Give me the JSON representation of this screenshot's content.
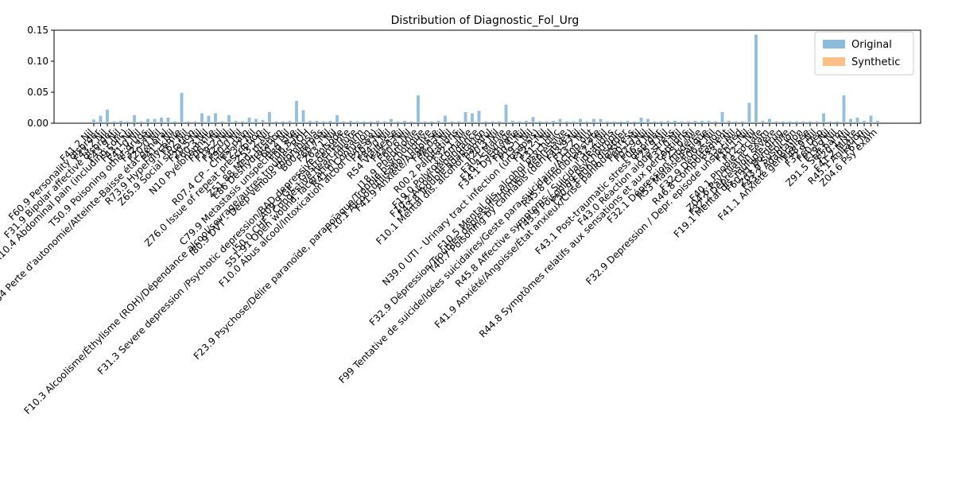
{
  "chart_data": {
    "type": "bar",
    "title": "Distribution of Diagnostic_Fol_Urg",
    "xlabel": "",
    "ylabel": "",
    "ylim": [
      0,
      0.15
    ],
    "yticks": [
      "0.00",
      "0.05",
      "0.10",
      "0.15"
    ],
    "grid": false,
    "legend_position": "top-right",
    "colors": {
      "original": "#8DBCDB",
      "synthetic": "#FFBF86"
    },
    "categories": [
      "F41.2 Nil",
      "F60.9 Personality disorder",
      "F43.2 Nil",
      "F31.9 Bipolar affective disorder",
      "F43.9 Nil",
      "R10.4 Abdominal pain (including colic)",
      "F43.1 Nil",
      "F41.0 Nil",
      "T50.9 Poisoning other drugs",
      "F32.3 Nil",
      "F20.0 Nil",
      "R54 Perte d'autonomie/Atteinte-Baisse état général",
      "F41.1 Nil",
      "R73.9 Hyperglycémie",
      "F62 Nil",
      "Z65.9 Social situation",
      "F20.5 Nil",
      "F60.3 Nil",
      "N10 Pyélonéphrite",
      "F06.1 Nil",
      "F19.2 Nil",
      "F32.0 Nil",
      "F90.0 Nil",
      "R07.4 CP - Chest pain",
      "F23.2 Nil",
      "Z76.0 Issue of repeat prescription",
      "Z53.2 Nil",
      "Z51.88 Med. presc.",
      "E86 Déshydratation",
      "F60.2 Nil",
      "C79.9 Metastasis unspecified site",
      "F06.8 Nil",
      "F10.3 Alcoolisme/Éthylisme (ROH)/Dépendance alcool/sevrage/autres troubles ROH",
      "I80.9 DVT - Deep venous thrombosis",
      "B00 Herpes",
      "F60.7 Nil",
      "Z63.1 Nil",
      "F31.3 Severe depression /Psychotic depression/BAD depressive episode",
      "A09.9 GE - Gastroentérite",
      "I50.0 CHF - Congestive heart failure",
      "S51.91 Open wound, laceration forearm",
      "R41.0 Confusion",
      "F10.0 Abus alcool/Intoxication alcool (Ivresse)",
      "F20.9 Nil",
      "F84.0 Nil",
      "R54 Vieillesse",
      "F43.0 Nil",
      "F60.6 Nil",
      "J18.9 Pneumonie",
      "F23.9 Psychose/Délire paranoïde, paranoïaque/Trouble psychotique",
      "F10.1 Alcool utilisation nocive",
      "F41.9 Anxiété/Angoisse",
      "F48.0 Nil",
      "F60.8 Nil",
      "R00.2 Palpitations",
      "F32.1 Nil",
      "F19.0 Polytoxicomanie",
      "F10.2 Alcool dépendance",
      "F43.8 Trouble adaptation",
      "F10.1 Mental dis. alcohol harmful",
      "F20.3 Nil",
      "F30.1 Manie",
      "F10.4 Sevrage",
      "F34.1 Dysthymie",
      "F60.5 Nil",
      "F19.1 Nil",
      "N39.0 UTI - Urinary tract infection (urosepsis)",
      "F12.2 Nil",
      "F31.1 Nil",
      "F10.5 Mental dis. alcohol psychotic",
      "F32.9 Dépression/Troubles dépressifs/Humeur dépressive",
      "T40.7 Poisoning by cannabis (derivatives)",
      "F43.9 Nil",
      "F13.2 Nil",
      "F99 Tentative de suicide/Idées suicidaires/Geste para-suicidaire/Acting out",
      "R45.8 Emotional state",
      "F32.2 Nil",
      "R45.8 Affective symptoms / Suicidal ideations",
      "T43.9 Poisoning psychotropic",
      "F50.9 Eating disorder",
      "F41.9 Anxiété/Angoisse/État anxieux/Crise panique/Stress",
      "F60.1 Nil",
      "F07.9 Nil",
      "F06.9 Nil",
      "F43.1 Post-traumatic stress disorder",
      "F25.9 Nil",
      "F43.0 Réaction aiguë stress",
      "F31.0 Nil",
      "R44.8 Symptômes relatifs aux sensations et aux perceptions",
      "F25.0 Nil",
      "F32.1 Dépression modérée",
      "R53 Malaise/Fatigue",
      "F06.2 Nil",
      "F32.9 Dépression",
      "R46.8 Comportement",
      "F33.1 Nil",
      "F32.9 Depression / Depr. episode unspecified",
      "F10.1 Nil",
      "F12.1 Nil",
      "F40.1 Phobie sociale",
      "Z04.6 Psychiatric exam",
      "F32.2 Dépression sévère",
      "F19.1 Mental dis. multiple drug",
      "F60.31 Borderline",
      "Z03.9 Suspicion",
      "F43.2 Adaptation",
      "F41.1 Anxiété généralisée",
      "F48.9 Nil",
      "F32.9 Dep",
      "F60.0 Nil",
      "F19.9 Nil",
      "Z91.5 Self-harm",
      "F20.1 Nil",
      "F41.2 Mixte",
      "R45.1 Agitation",
      "F61 Nil",
      "Z04.6 Psy exam"
    ],
    "series": [
      {
        "name": "Original",
        "values": [
          0.006,
          0.012,
          0.022,
          0.003,
          0.004,
          0.003,
          0.013,
          0.003,
          0.007,
          0.007,
          0.009,
          0.009,
          0.003,
          0.049,
          0.003,
          0.003,
          0.016,
          0.012,
          0.016,
          0.003,
          0.013,
          0.004,
          0.003,
          0.009,
          0.007,
          0.005,
          0.018,
          0.003,
          0.003,
          0.004,
          0.036,
          0.021,
          0.004,
          0.004,
          0.003,
          0.004,
          0.013,
          0.003,
          0.004,
          0.003,
          0.003,
          0.003,
          0.004,
          0.003,
          0.007,
          0.003,
          0.004,
          0.003,
          0.045,
          0.003,
          0.003,
          0.004,
          0.012,
          0.003,
          0.003,
          0.018,
          0.016,
          0.02,
          0.003,
          0.003,
          0.003,
          0.03,
          0.004,
          0.003,
          0.004,
          0.01,
          0.003,
          0.003,
          0.004,
          0.007,
          0.003,
          0.003,
          0.007,
          0.003,
          0.007,
          0.007,
          0.003,
          0.003,
          0.003,
          0.004,
          0.003,
          0.009,
          0.007,
          0.003,
          0.003,
          0.004,
          0.004,
          0.003,
          0.003,
          0.004,
          0.004,
          0.004,
          0.003,
          0.018,
          0.004,
          0.003,
          0.003,
          0.033,
          0.143,
          0.004,
          0.007,
          0.003,
          0.003,
          0.003,
          0.003,
          0.003,
          0.003,
          0.003,
          0.016,
          0.003,
          0.003,
          0.045,
          0.007,
          0.009,
          0.004,
          0.012,
          0.004
        ]
      },
      {
        "name": "Synthetic",
        "values": [
          0,
          0,
          0,
          0,
          0,
          0,
          0,
          0,
          0,
          0,
          0,
          0,
          0,
          0,
          0,
          0,
          0,
          0,
          0,
          0,
          0,
          0,
          0,
          0,
          0,
          0,
          0,
          0,
          0,
          0,
          0,
          0,
          0,
          0,
          0,
          0,
          0,
          0,
          0,
          0,
          0,
          0,
          0,
          0,
          0,
          0,
          0,
          0,
          0,
          0,
          0,
          0,
          0,
          0,
          0,
          0,
          0,
          0,
          0,
          0,
          0,
          0,
          0,
          0,
          0,
          0,
          0,
          0,
          0,
          0,
          0,
          0,
          0,
          0,
          0,
          0,
          0,
          0,
          0,
          0,
          0,
          0,
          0,
          0,
          0,
          0,
          0,
          0,
          0,
          0,
          0,
          0,
          0,
          0,
          0,
          0,
          0,
          0,
          0,
          0,
          0,
          0,
          0,
          0,
          0,
          0,
          0,
          0,
          0,
          0,
          0,
          0,
          0,
          0,
          0,
          0,
          0
        ]
      }
    ]
  }
}
